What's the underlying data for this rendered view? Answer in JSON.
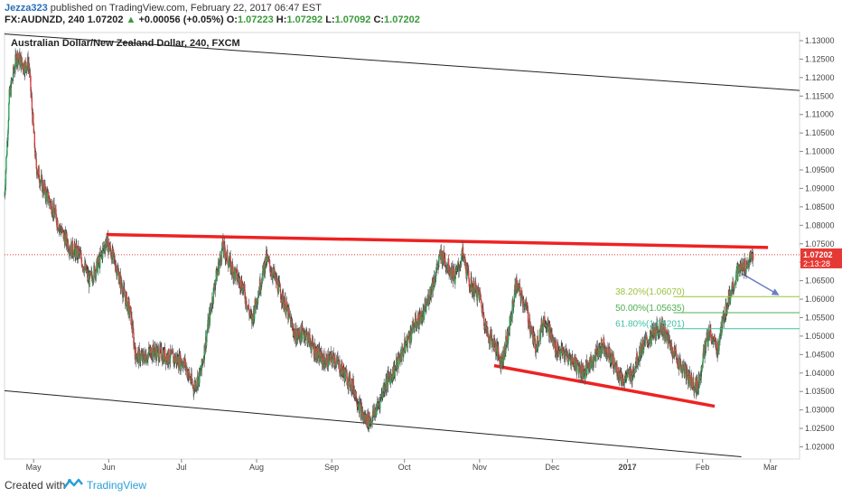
{
  "header": {
    "author": "Jezza323",
    "published_text": "published on TradingView.com, February 22, 2017 06:47 EST",
    "symbol": "FX:AUDNZD, 240",
    "last": "1.07202",
    "change": "+0.00056 (+0.05%)",
    "o_label": "O:",
    "o_value": "1.07223",
    "h_label": "H:",
    "h_value": "1.07292",
    "l_label": "L:",
    "l_value": "1.07092",
    "c_label": "C:",
    "c_value": "1.07202"
  },
  "footer": {
    "created_with": "Created with",
    "brand": "TradingView"
  },
  "chart_data": {
    "type": "candlestick",
    "title": "Australian Dollar/New Zealand Dollar, 240, FXCM",
    "y_ticks": [
      1.02,
      1.025,
      1.03,
      1.035,
      1.04,
      1.045,
      1.05,
      1.055,
      1.06,
      1.065,
      1.07,
      1.075,
      1.08,
      1.085,
      1.09,
      1.095,
      1.1,
      1.105,
      1.11,
      1.115,
      1.12,
      1.125,
      1.13
    ],
    "y_tick_labels": [
      "1.02000",
      "1.02500",
      "1.03000",
      "1.03500",
      "1.04000",
      "1.04500",
      "1.05000",
      "1.05500",
      "1.06000",
      "1.06500",
      "1.07000",
      "1.07500",
      "1.08000",
      "1.08500",
      "1.09000",
      "1.09500",
      "1.10000",
      "1.10500",
      "1.11000",
      "1.11500",
      "1.12000",
      "1.12500",
      "1.13000"
    ],
    "ylim": [
      1.0167,
      1.1322
    ],
    "x_range": [
      "2016-04-19",
      "2017-03-13"
    ],
    "x_ticks": [
      {
        "date": "2016-05-01",
        "label": "May",
        "bold": false
      },
      {
        "date": "2016-06-01",
        "label": "Jun",
        "bold": false
      },
      {
        "date": "2016-07-01",
        "label": "Jul",
        "bold": false
      },
      {
        "date": "2016-08-01",
        "label": "Aug",
        "bold": false
      },
      {
        "date": "2016-09-01",
        "label": "Sep",
        "bold": false
      },
      {
        "date": "2016-10-01",
        "label": "Oct",
        "bold": false
      },
      {
        "date": "2016-11-01",
        "label": "Nov",
        "bold": false
      },
      {
        "date": "2016-12-01",
        "label": "Dec",
        "bold": false
      },
      {
        "date": "2017-01-01",
        "label": "2017",
        "bold": true
      },
      {
        "date": "2017-02-01",
        "label": "Feb",
        "bold": false
      },
      {
        "date": "2017-03-01",
        "label": "Mar",
        "bold": false
      }
    ],
    "price_path": [
      [
        "2016-04-19",
        1.088
      ],
      [
        "2016-04-21",
        1.115
      ],
      [
        "2016-04-24",
        1.126
      ],
      [
        "2016-04-27",
        1.123
      ],
      [
        "2016-04-29",
        1.124
      ],
      [
        "2016-05-02",
        1.096
      ],
      [
        "2016-05-05",
        1.09
      ],
      [
        "2016-05-08",
        1.086
      ],
      [
        "2016-05-12",
        1.079
      ],
      [
        "2016-05-16",
        1.074
      ],
      [
        "2016-05-20",
        1.072
      ],
      [
        "2016-05-24",
        1.065
      ],
      [
        "2016-05-28",
        1.07
      ],
      [
        "2016-05-31",
        1.076
      ],
      [
        "2016-06-04",
        1.069
      ],
      [
        "2016-06-07",
        1.062
      ],
      [
        "2016-06-10",
        1.056
      ],
      [
        "2016-06-12",
        1.045
      ],
      [
        "2016-06-15",
        1.044
      ],
      [
        "2016-06-19",
        1.046
      ],
      [
        "2016-06-23",
        1.045
      ],
      [
        "2016-06-27",
        1.044
      ],
      [
        "2016-07-02",
        1.043
      ],
      [
        "2016-07-06",
        1.036
      ],
      [
        "2016-07-09",
        1.04
      ],
      [
        "2016-07-12",
        1.053
      ],
      [
        "2016-07-15",
        1.065
      ],
      [
        "2016-07-18",
        1.074
      ],
      [
        "2016-07-22",
        1.068
      ],
      [
        "2016-07-26",
        1.064
      ],
      [
        "2016-07-30",
        1.054
      ],
      [
        "2016-08-01",
        1.06
      ],
      [
        "2016-08-05",
        1.071
      ],
      [
        "2016-08-09",
        1.065
      ],
      [
        "2016-08-13",
        1.058
      ],
      [
        "2016-08-17",
        1.05
      ],
      [
        "2016-08-21",
        1.051
      ],
      [
        "2016-08-25",
        1.046
      ],
      [
        "2016-08-29",
        1.043
      ],
      [
        "2016-09-02",
        1.044
      ],
      [
        "2016-09-06",
        1.04
      ],
      [
        "2016-09-10",
        1.036
      ],
      [
        "2016-09-14",
        1.028
      ],
      [
        "2016-09-17",
        1.027
      ],
      [
        "2016-09-20",
        1.031
      ],
      [
        "2016-09-23",
        1.037
      ],
      [
        "2016-09-27",
        1.041
      ],
      [
        "2016-10-01",
        1.047
      ],
      [
        "2016-10-05",
        1.053
      ],
      [
        "2016-10-09",
        1.056
      ],
      [
        "2016-10-13",
        1.065
      ],
      [
        "2016-10-16",
        1.072
      ],
      [
        "2016-10-19",
        1.069
      ],
      [
        "2016-10-22",
        1.066
      ],
      [
        "2016-10-25",
        1.072
      ],
      [
        "2016-10-28",
        1.064
      ],
      [
        "2016-11-01",
        1.061
      ],
      [
        "2016-11-04",
        1.051
      ],
      [
        "2016-11-07",
        1.048
      ],
      [
        "2016-11-10",
        1.043
      ],
      [
        "2016-11-13",
        1.051
      ],
      [
        "2016-11-16",
        1.064
      ],
      [
        "2016-11-20",
        1.058
      ],
      [
        "2016-11-24",
        1.047
      ],
      [
        "2016-11-28",
        1.055
      ],
      [
        "2016-12-02",
        1.047
      ],
      [
        "2016-12-06",
        1.045
      ],
      [
        "2016-12-10",
        1.043
      ],
      [
        "2016-12-14",
        1.04
      ],
      [
        "2016-12-18",
        1.044
      ],
      [
        "2016-12-22",
        1.048
      ],
      [
        "2016-12-26",
        1.043
      ],
      [
        "2016-12-30",
        1.038
      ],
      [
        "2017-01-03",
        1.04
      ],
      [
        "2017-01-07",
        1.047
      ],
      [
        "2017-01-11",
        1.05
      ],
      [
        "2017-01-15",
        1.053
      ],
      [
        "2017-01-19",
        1.047
      ],
      [
        "2017-01-23",
        1.042
      ],
      [
        "2017-01-27",
        1.038
      ],
      [
        "2017-01-30",
        1.036
      ],
      [
        "2017-02-02",
        1.047
      ],
      [
        "2017-02-04",
        1.051
      ],
      [
        "2017-02-07",
        1.046
      ],
      [
        "2017-02-10",
        1.056
      ],
      [
        "2017-02-13",
        1.063
      ],
      [
        "2017-02-16",
        1.068
      ],
      [
        "2017-02-19",
        1.069
      ],
      [
        "2017-02-22",
        1.072
      ]
    ],
    "lines": [
      {
        "name": "upper-channel",
        "from": [
          "2016-04-19",
          1.1318
        ],
        "to": [
          "2017-03-13",
          1.1165
        ],
        "color": "#222222"
      },
      {
        "name": "lower-channel",
        "from": [
          "2016-04-19",
          1.0352
        ],
        "to": [
          "2017-02-17",
          1.0173
        ],
        "color": "#222222"
      },
      {
        "name": "resistance",
        "from": [
          "2016-05-31",
          1.0775
        ],
        "to": [
          "2017-02-28",
          1.074
        ],
        "color": "#ee2222"
      },
      {
        "name": "support",
        "from": [
          "2016-11-07",
          1.042
        ],
        "to": [
          "2017-02-06",
          1.031
        ],
        "color": "#ee2222"
      }
    ],
    "current_price": {
      "value": 1.07202,
      "label": "1.07202",
      "timer": "2:13:28"
    },
    "fibonacci": [
      {
        "label": "38.20%(1.06070)",
        "value": 1.0607,
        "color": "#9ac23c"
      },
      {
        "label": "50.00%(1.05635)",
        "value": 1.05635,
        "color": "#4caf50"
      },
      {
        "label": "61.80%(1.05201)",
        "value": 1.05201,
        "color": "#3fbfa0"
      }
    ],
    "fib_start": "2017-01-20",
    "arrow": {
      "from": [
        "2017-02-17",
        1.067
      ],
      "to": [
        "2017-03-04",
        1.0613
      ],
      "color": "#6a7fc8"
    }
  }
}
